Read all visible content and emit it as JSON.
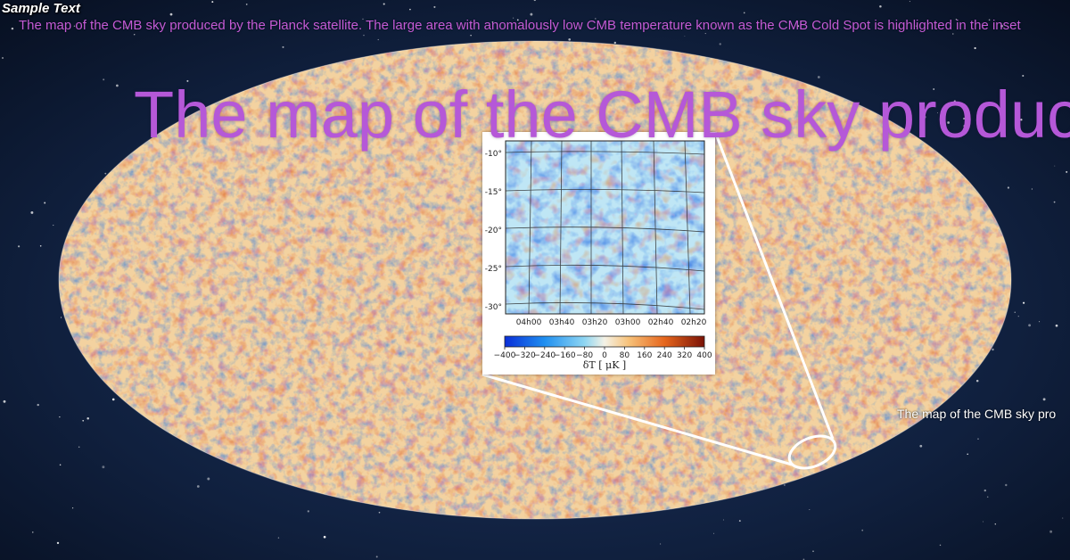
{
  "sample_text": "Sample Text",
  "caption": "The map of the CMB sky produced by the Planck satellite. The large area with anomalously low CMB temperature known as the CMB Cold Spot is highlighted in the inset",
  "title": "The map of the CMB sky produced",
  "side_caption": "The map of the CMB sky pro",
  "inset": {
    "y_ticks": [
      "-10°",
      "-15°",
      "-20°",
      "-25°",
      "-30°"
    ],
    "x_ticks": [
      "04h00",
      "03h40",
      "03h20",
      "03h00",
      "02h40",
      "02h20"
    ],
    "colorbar_ticks": [
      "−400",
      "−320",
      "−240",
      "−160",
      "−80",
      "0",
      "80",
      "160",
      "240",
      "320",
      "400"
    ],
    "colorbar_label": "δT [ μK ]"
  },
  "colors": {
    "caption": "#c45bd6",
    "title": "#b558d8",
    "cold": "#1c5fe0",
    "hot": "#e8741e"
  }
}
